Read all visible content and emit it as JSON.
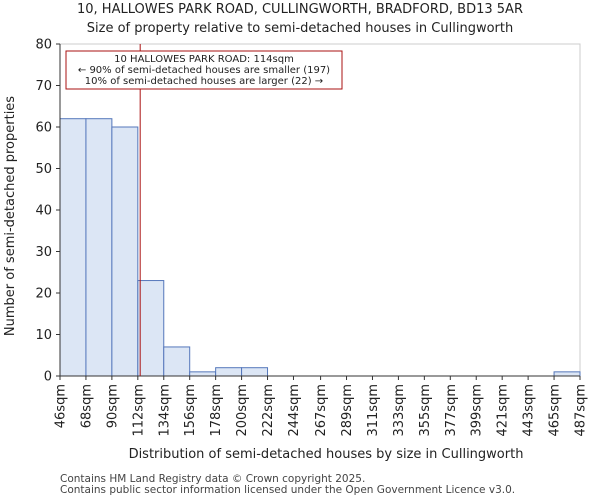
{
  "chart_data": {
    "type": "bar",
    "title": "10, HALLOWES PARK ROAD, CULLINGWORTH, BRADFORD, BD13 5AR",
    "subtitle": "Size of property relative to semi-detached houses in Cullingworth",
    "xlabel": "Distribution of semi-detached houses by size in Cullingworth",
    "ylabel": "Number of semi-detached properties",
    "bin_edges": [
      46,
      68,
      90,
      112,
      134,
      156,
      178,
      200,
      222,
      244,
      267,
      289,
      311,
      333,
      355,
      377,
      399,
      421,
      443,
      465,
      487
    ],
    "tick_labels": [
      "46sqm",
      "68sqm",
      "90sqm",
      "112sqm",
      "134sqm",
      "156sqm",
      "178sqm",
      "200sqm",
      "222sqm",
      "244sqm",
      "267sqm",
      "289sqm",
      "311sqm",
      "333sqm",
      "355sqm",
      "377sqm",
      "399sqm",
      "421sqm",
      "443sqm",
      "465sqm",
      "487sqm"
    ],
    "values": [
      62,
      62,
      60,
      23,
      7,
      1,
      2,
      2,
      0,
      0,
      0,
      0,
      0,
      0,
      0,
      0,
      0,
      0,
      0,
      1
    ],
    "ylim": [
      0,
      80
    ],
    "yticks": [
      0,
      10,
      20,
      30,
      40,
      50,
      60,
      70,
      80
    ],
    "marker_value": 114,
    "annotation": {
      "line1": "10 HALLOWES PARK ROAD: 114sqm",
      "line2": "← 90% of semi-detached houses are smaller (197)",
      "line3": "10% of semi-detached houses are larger (22) →"
    },
    "colors": {
      "bar_fill": "#dce6f5",
      "bar_edge": "#5577bb",
      "marker": "#aa1111",
      "annotation_border": "#aa1111"
    }
  },
  "footer": {
    "line1": "Contains HM Land Registry data © Crown copyright 2025.",
    "line2": "Contains public sector information licensed under the Open Government Licence v3.0."
  }
}
